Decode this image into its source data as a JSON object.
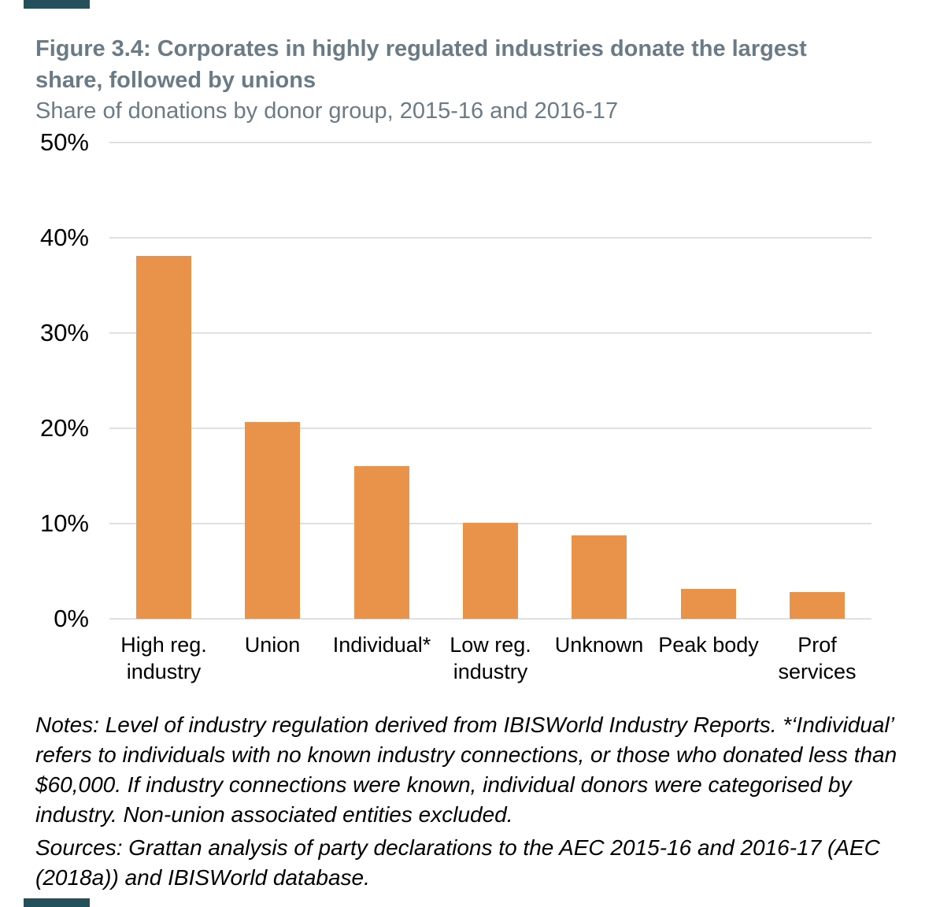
{
  "page": {
    "accent_color": "#24505C"
  },
  "header": {
    "title": "Figure 3.4: Corporates in highly regulated industries donate the largest\nshare, followed by unions",
    "subtitle": "Share of donations by donor group, 2015-16 and 2016-17"
  },
  "chart_data": {
    "type": "bar",
    "title": "Figure 3.4: Corporates in highly regulated industries donate the largest share, followed by unions",
    "subtitle": "Share of donations by donor group, 2015-16 and 2016-17",
    "categories": [
      "High reg.\nindustry",
      "Union",
      "Individual*",
      "Low reg.\nindustry",
      "Unknown",
      "Peak body",
      "Prof\nservices"
    ],
    "values": [
      38.1,
      20.7,
      16.0,
      10.1,
      8.8,
      3.1,
      2.8
    ],
    "unit": "%",
    "xlabel": "",
    "ylabel": "",
    "ylim": [
      0,
      50
    ],
    "ytick_labels": [
      "50%",
      "40%",
      "30%",
      "20%",
      "10%",
      "0%"
    ],
    "ytick_values": [
      50,
      40,
      30,
      20,
      10,
      0
    ],
    "grid": "horizontal gridlines on",
    "legend": "none",
    "bar_color": "#E8924A",
    "gridline_color": "#E0E0E0"
  },
  "footer": {
    "notes": "Notes: Level of industry regulation derived from IBISWorld Industry Reports. *‘Individual’ refers to individuals with no known industry connections, or those who donated less than $60,000. If industry connections were known, individual donors were categorised by industry. Non-union associated entities excluded.",
    "sources": "Sources: Grattan analysis of party declarations to the AEC 2015-16 and 2016-17 (AEC (2018a)) and IBISWorld database."
  }
}
